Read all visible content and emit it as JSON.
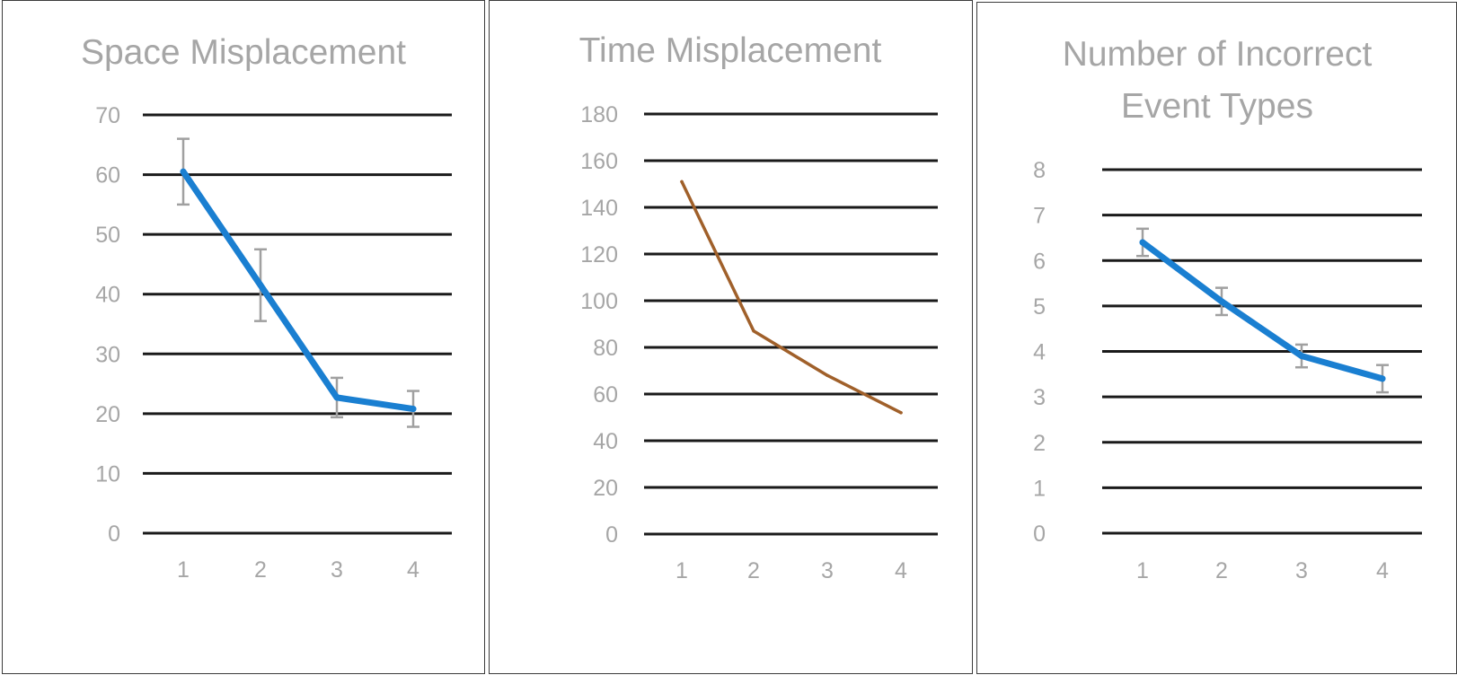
{
  "chart_data": [
    {
      "type": "line",
      "title": "Space Misplacement",
      "categories": [
        "1",
        "2",
        "3",
        "4"
      ],
      "values": [
        60.5,
        41.5,
        22.7,
        20.8
      ],
      "error": [
        5.5,
        6.0,
        3.3,
        3.0
      ],
      "ylim": [
        0,
        70
      ],
      "yticks": [
        "0",
        "10",
        "20",
        "30",
        "40",
        "50",
        "60",
        "70"
      ],
      "line_color": "#1a7fd1",
      "grid": true
    },
    {
      "type": "line",
      "title": "Time Misplacement",
      "categories": [
        "1",
        "2",
        "3",
        "4"
      ],
      "values": [
        151,
        87,
        68,
        52
      ],
      "ylim": [
        0,
        180
      ],
      "yticks": [
        "0",
        "20",
        "40",
        "60",
        "80",
        "100",
        "120",
        "140",
        "160",
        "180"
      ],
      "line_color": "#a0602a",
      "grid": true
    },
    {
      "type": "line",
      "title": "Number of Incorrect Event Types",
      "title_lines": [
        "Number of Incorrect",
        "Event Types"
      ],
      "categories": [
        "1",
        "2",
        "3",
        "4"
      ],
      "values": [
        6.4,
        5.1,
        3.9,
        3.4
      ],
      "error": [
        0.3,
        0.3,
        0.25,
        0.3
      ],
      "ylim": [
        0,
        8
      ],
      "yticks": [
        "0",
        "1",
        "2",
        "3",
        "4",
        "5",
        "6",
        "7",
        "8"
      ],
      "line_color": "#1a7fd1",
      "grid": true
    }
  ]
}
